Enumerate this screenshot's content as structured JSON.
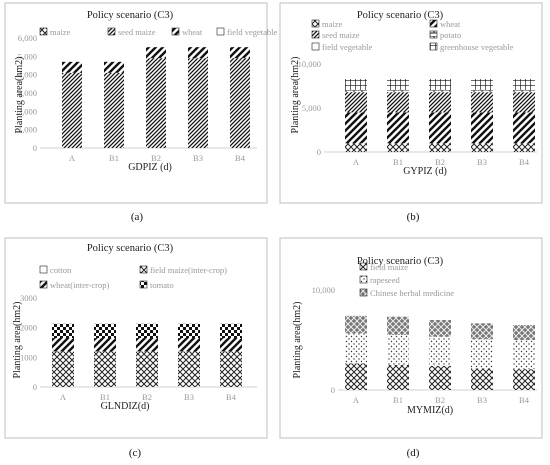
{
  "chart_data": [
    {
      "type": "bar",
      "stacked": true,
      "panel": "(a)",
      "title": "Policy scenario (C3)",
      "xlabel": "GDPIZ (d)",
      "ylabel": "Planting area(hm2)",
      "categories": [
        "A",
        "B1",
        "B2",
        "B3",
        "B4"
      ],
      "yticks": [
        "0",
        "1,000",
        "2,000",
        "3,000",
        "4,000",
        "5,000",
        "6,000"
      ],
      "ylim": [
        0,
        6000
      ],
      "legend_position": "top",
      "series": [
        {
          "name": "maize",
          "values": [
            0,
            0,
            0,
            0,
            0
          ]
        },
        {
          "name": "seed maize",
          "values": [
            4100,
            4100,
            4900,
            4900,
            4900
          ]
        },
        {
          "name": "wheat",
          "values": [
            600,
            600,
            600,
            600,
            600
          ]
        },
        {
          "name": "field vegetable",
          "values": [
            0,
            0,
            0,
            0,
            0
          ]
        }
      ]
    },
    {
      "type": "bar",
      "stacked": true,
      "panel": "(b)",
      "title": "Policy scenario (C3)",
      "xlabel": "GYPIZ (d)",
      "ylabel": "Planting area(hm2)",
      "categories": [
        "A",
        "B1",
        "B2",
        "B3",
        "B4"
      ],
      "yticks": [
        "0",
        "5,000",
        "10,000"
      ],
      "ylim": [
        0,
        10000
      ],
      "legend_position": "top",
      "series": [
        {
          "name": "maize",
          "values": [
            1000,
            1000,
            1000,
            1000,
            1000
          ]
        },
        {
          "name": "wheat",
          "values": [
            3500,
            3500,
            3500,
            3500,
            3500
          ]
        },
        {
          "name": "seed maize",
          "values": [
            2300,
            2300,
            2300,
            2300,
            2300
          ]
        },
        {
          "name": "potato",
          "values": [
            200,
            200,
            200,
            200,
            200
          ]
        },
        {
          "name": "field vegetable",
          "values": [
            0,
            0,
            0,
            0,
            0
          ]
        },
        {
          "name": "greenhouse vegetable",
          "values": [
            1300,
            1300,
            1300,
            1300,
            1300
          ]
        }
      ]
    },
    {
      "type": "bar",
      "stacked": true,
      "panel": "(c)",
      "title": "Policy scenario (C3)",
      "xlabel": "GLNDIZ(d)",
      "ylabel": "Planting area(hm2)",
      "categories": [
        "A",
        "B1",
        "B2",
        "B3",
        "B4"
      ],
      "yticks": [
        "0",
        "1000",
        "2000",
        "3000"
      ],
      "ylim": [
        0,
        3000
      ],
      "legend_position": "top",
      "series": [
        {
          "name": "cotton",
          "values": [
            0,
            0,
            0,
            0,
            0
          ]
        },
        {
          "name": "field maize(inter-crop)",
          "values": [
            1200,
            1200,
            1200,
            1200,
            1200
          ]
        },
        {
          "name": "wheat(inter-crop)",
          "values": [
            450,
            450,
            450,
            450,
            450
          ]
        },
        {
          "name": "tomato",
          "values": [
            480,
            480,
            480,
            480,
            480
          ]
        }
      ]
    },
    {
      "type": "bar",
      "stacked": true,
      "panel": "(d)",
      "title": "Policy scenario (C3)",
      "xlabel": "MYMIZ(d)",
      "ylabel": "Planting area(hm2)",
      "categories": [
        "A",
        "B1",
        "B2",
        "B3",
        "B4"
      ],
      "yticks": [
        "0",
        "10,000"
      ],
      "ylim": [
        0,
        12000
      ],
      "legend_position": "top",
      "series": [
        {
          "name": "field maize",
          "values": [
            3200,
            3000,
            2900,
            2600,
            2500
          ]
        },
        {
          "name": "rapeseed",
          "values": [
            3600,
            3600,
            3500,
            3500,
            3500
          ]
        },
        {
          "name": "Chinese herbal medicine",
          "values": [
            2100,
            2200,
            2000,
            1900,
            1800
          ]
        }
      ]
    }
  ],
  "captions": [
    "(a)",
    "(b)",
    "(c)",
    "(d)"
  ]
}
